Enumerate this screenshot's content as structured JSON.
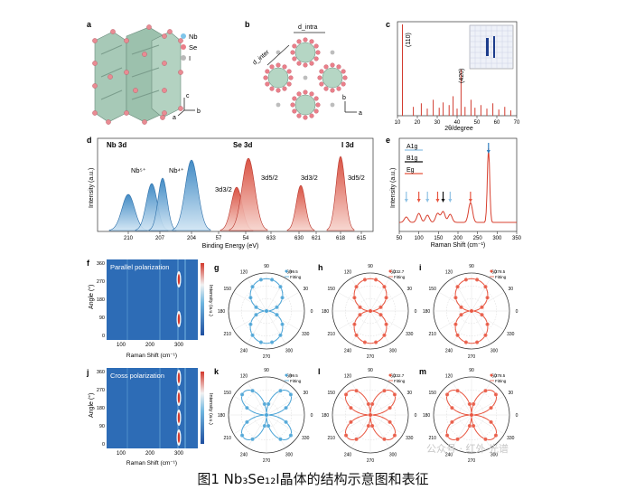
{
  "caption": "图1 Nb₃Se₁₂I晶体的结构示意图和表征",
  "watermark": "公众号 · 红外·光谱",
  "panels": {
    "a": {
      "label": "a",
      "legend": [
        "Nb",
        "Se",
        "I"
      ],
      "axes": [
        "c",
        "a",
        "b"
      ]
    },
    "b": {
      "label": "b",
      "d_inter": "d_inter",
      "d_intra": "d_intra",
      "axes": [
        "b",
        "a"
      ]
    },
    "c": {
      "label": "c",
      "xlabel": "2θ/degree",
      "peak_labels": [
        "(110)",
        "(420)"
      ],
      "xticks": [
        "10",
        "20",
        "30",
        "40",
        "50",
        "60",
        "70"
      ]
    },
    "d": {
      "label": "d",
      "ylabel": "Intensity (a.u.)",
      "xlabel": "Binding Energy (eV)",
      "groups": [
        "Nb 3d",
        "Se 3d",
        "I 3d"
      ],
      "peak_labels": [
        "Nb⁵⁺",
        "Nb⁴⁺",
        "3d3/2",
        "3d5/2",
        "3d3/2",
        "3d5/2"
      ],
      "xticks": [
        "210",
        "207",
        "204",
        "57",
        "54",
        "633",
        "630",
        "621",
        "618",
        "615"
      ]
    },
    "e": {
      "label": "e",
      "ylabel": "Intensity (a.u.)",
      "xlabel": "Raman Shift (cm⁻¹)",
      "legend": [
        "A1g",
        "B1g",
        "Eg"
      ],
      "xticks": [
        "50",
        "100",
        "150",
        "200",
        "250",
        "300",
        "350"
      ]
    },
    "f": {
      "label": "f",
      "title": "Parallel polarization",
      "ylabel": "Angle (°)",
      "xlabel": "Raman Shift (cm⁻¹)",
      "cbar": "Intensity (a.u.)",
      "yticks": [
        "360",
        "270",
        "180",
        "90",
        "0"
      ],
      "xticks": [
        "100",
        "200",
        "300"
      ]
    },
    "j": {
      "label": "j",
      "title": "Cross polarization",
      "ylabel": "Angle (°)",
      "xlabel": "Raman Shift (cm⁻¹)",
      "cbar": "Intensity (a.u.)",
      "yticks": [
        "360",
        "270",
        "180",
        "90",
        "0"
      ],
      "xticks": [
        "100",
        "200",
        "300"
      ]
    },
    "polar": [
      {
        "label": "g",
        "peak": "99.5",
        "fit": "Fitting",
        "color": "#4aa3d6",
        "mode": "two"
      },
      {
        "label": "h",
        "peak": "232.7",
        "fit": "Fitting",
        "color": "#e8553f",
        "mode": "two"
      },
      {
        "label": "i",
        "peak": "278.5",
        "fit": "Fitting",
        "color": "#e8553f",
        "mode": "two"
      },
      {
        "label": "k",
        "peak": "99.5",
        "fit": "Fitting",
        "color": "#4aa3d6",
        "mode": "four"
      },
      {
        "label": "l",
        "peak": "232.7",
        "fit": "Fitting",
        "color": "#e8553f",
        "mode": "four"
      },
      {
        "label": "m",
        "peak": "278.5",
        "fit": "Fitting",
        "color": "#e8553f",
        "mode": "four"
      }
    ],
    "polar_ticks": [
      "90",
      "60",
      "30",
      "0",
      "330",
      "300",
      "270",
      "240",
      "210",
      "180",
      "150",
      "120"
    ]
  }
}
